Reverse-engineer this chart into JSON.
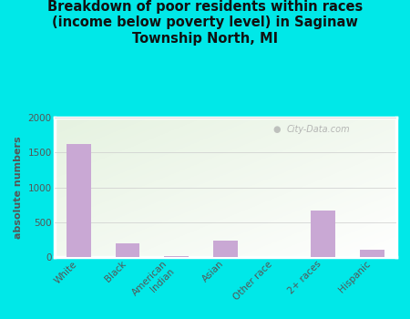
{
  "categories": [
    "White",
    "Black",
    "American\nIndian",
    "Asian",
    "Other race",
    "2+ races",
    "Hispanic"
  ],
  "values": [
    1620,
    200,
    10,
    230,
    0,
    660,
    100
  ],
  "bar_color": "#c9a8d4",
  "background_color": "#00e8e8",
  "title": "Breakdown of poor residents within races\n(income below poverty level) in Saginaw\nTownship North, MI",
  "ylabel": "absolute numbers",
  "ylim": [
    0,
    2000
  ],
  "yticks": [
    0,
    500,
    1000,
    1500,
    2000
  ],
  "watermark": "City-Data.com",
  "title_fontsize": 10.5,
  "ylabel_fontsize": 8,
  "tick_fontsize": 7.5
}
